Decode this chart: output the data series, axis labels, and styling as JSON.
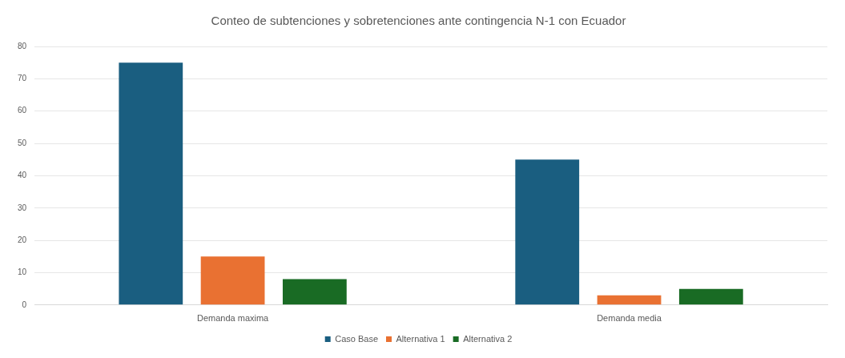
{
  "chart_data": {
    "type": "bar",
    "title": "Conteo de subtenciones y sobretenciones ante contingencia N-1 con Ecuador",
    "categories": [
      "Demanda maxima",
      "Demanda media"
    ],
    "series": [
      {
        "name": "Caso Base",
        "color": "#1a5e80",
        "values": [
          75,
          45
        ]
      },
      {
        "name": "Alternativa 1",
        "color": "#e97132",
        "values": [
          15,
          3
        ]
      },
      {
        "name": "Alternativa 2",
        "color": "#196b24",
        "values": [
          8,
          5
        ]
      }
    ],
    "ylim": [
      0,
      80
    ],
    "yticks": [
      0,
      10,
      20,
      30,
      40,
      50,
      60,
      70,
      80
    ],
    "grid": "y",
    "legend": "bottom"
  }
}
